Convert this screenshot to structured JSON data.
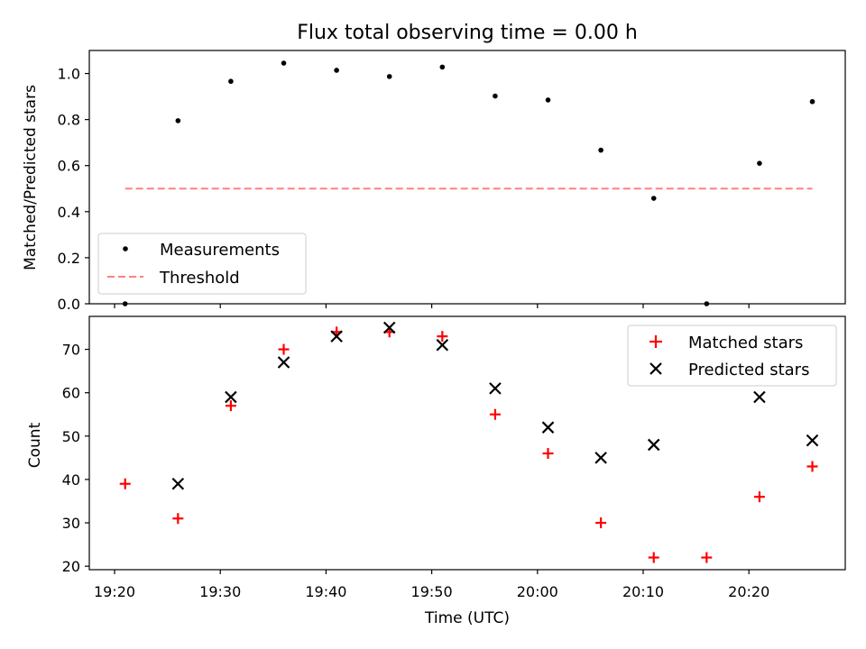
{
  "chart_data": [
    {
      "type": "scatter",
      "title": "Flux total observing time = 0.00 h",
      "xlabel": "",
      "ylabel": "Matched/Predicted stars",
      "ylim": [
        0.0,
        1.1
      ],
      "yticks": [
        "0.0",
        "0.2",
        "0.4",
        "0.6",
        "0.8",
        "1.0"
      ],
      "x": [
        "19:21",
        "19:26",
        "19:31",
        "19:36",
        "19:41",
        "19:46",
        "19:51",
        "19:56",
        "20:01",
        "20:06",
        "20:11",
        "20:16",
        "20:21",
        "20:26"
      ],
      "series": [
        {
          "name": "Measurements",
          "marker": "dot",
          "color": "#000000",
          "values": [
            0.0,
            0.795,
            0.966,
            1.045,
            1.014,
            0.987,
            1.028,
            0.902,
            0.885,
            0.667,
            0.458,
            0.0,
            0.61,
            0.878
          ]
        },
        {
          "name": "Threshold",
          "marker": "dashed-line",
          "color": "#ff8080",
          "values": [
            0.5,
            0.5
          ]
        }
      ],
      "legend": "lower-left",
      "grid": false
    },
    {
      "type": "scatter",
      "xlabel": "Time (UTC)",
      "ylabel": "Count",
      "ylim": [
        19.2,
        77.6
      ],
      "yticks": [
        "20",
        "30",
        "40",
        "50",
        "60",
        "70"
      ],
      "xticks": [
        "19:20",
        "19:30",
        "19:40",
        "19:50",
        "20:00",
        "20:10",
        "20:20"
      ],
      "x": [
        "19:21",
        "19:26",
        "19:31",
        "19:36",
        "19:41",
        "19:46",
        "19:51",
        "19:56",
        "20:01",
        "20:06",
        "20:11",
        "20:16",
        "20:21",
        "20:26"
      ],
      "series": [
        {
          "name": "Matched stars",
          "marker": "plus",
          "color": "#ff0000",
          "values": [
            39,
            31,
            57,
            70,
            74,
            74,
            73,
            55,
            46,
            30,
            22,
            22,
            36,
            43
          ]
        },
        {
          "name": "Predicted stars",
          "marker": "x",
          "color": "#000000",
          "values": [
            null,
            39,
            59,
            67,
            73,
            75,
            71,
            61,
            52,
            45,
            48,
            null,
            59,
            49
          ]
        }
      ],
      "legend": "upper-right",
      "grid": false
    }
  ]
}
